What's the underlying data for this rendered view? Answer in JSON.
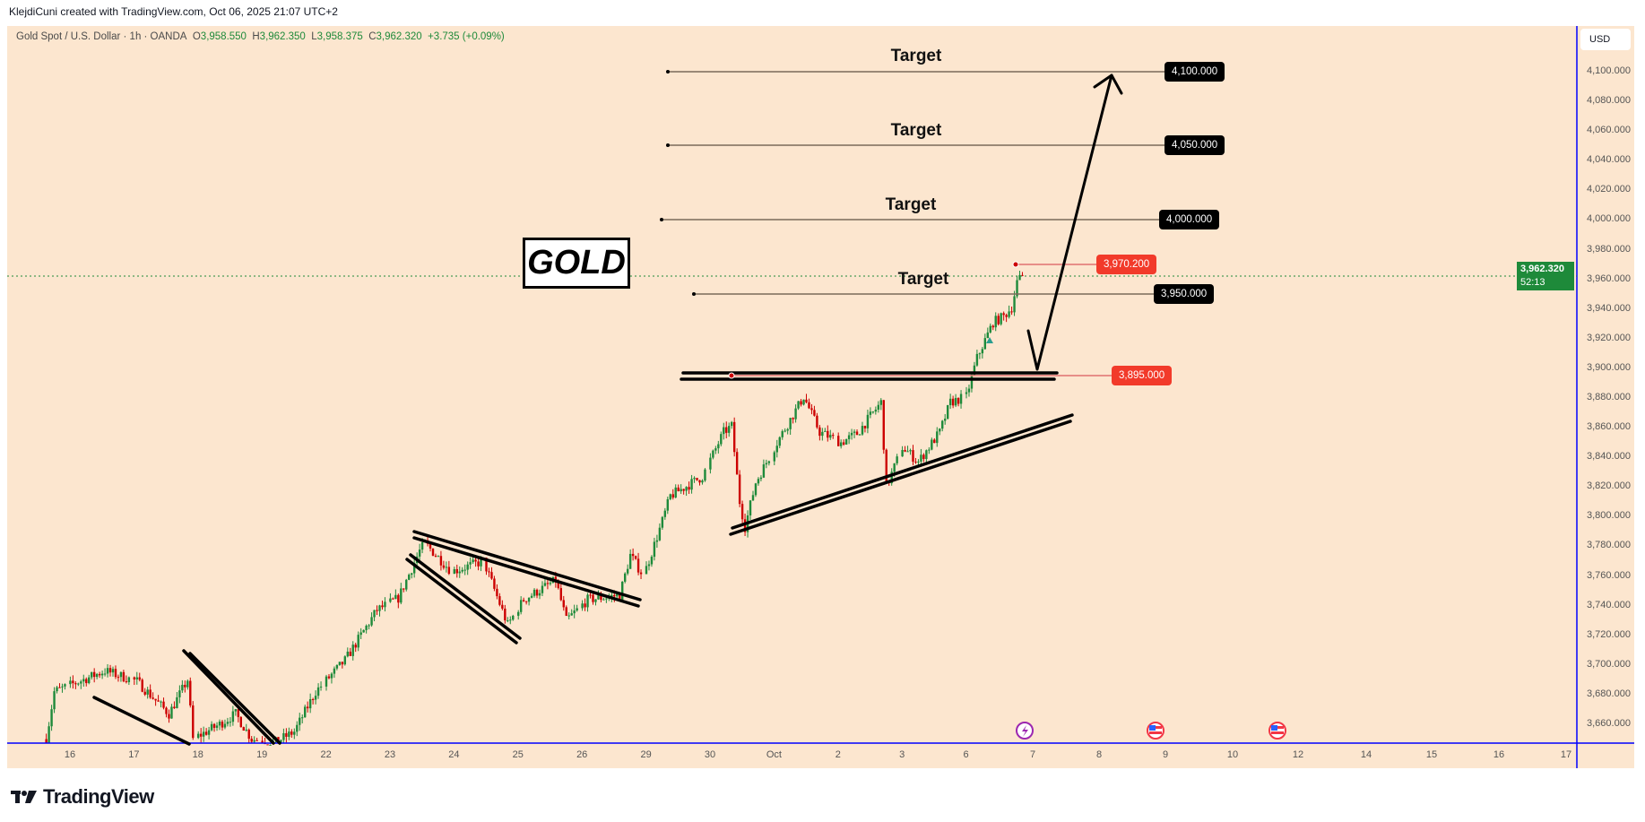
{
  "credit": "KlejdiCuni created with TradingView.com, Oct 06, 2025 21:07 UTC+2",
  "legend": {
    "symbol": "Gold Spot / U.S. Dollar · 1h · OANDA",
    "o_label": "O",
    "o": "3,958.550",
    "h_label": "H",
    "h": "3,962.350",
    "l_label": "L",
    "l": "3,958.375",
    "c_label": "C",
    "c": "3,962.320",
    "change": "+3.735 (+0.09%)"
  },
  "currency": "USD",
  "last_price": {
    "value": "3,962.320",
    "countdown": "52:13"
  },
  "annotations": {
    "title_box": "GOLD",
    "target_word": "Target",
    "targets": [
      "4,100.000",
      "4,050.000",
      "4,000.000",
      "3,950.000"
    ],
    "high_level": "3,970.200",
    "breakout_level": "3,895.000"
  },
  "events": [
    "lightning-event-icon",
    "us-flag-event-icon",
    "us-flag-event-icon"
  ],
  "brand": "TradingView",
  "colors": {
    "background": "#fce6cf",
    "up": "#1e8a3a",
    "down": "#cc0000",
    "axis": "#0000ff",
    "level_red": "#f23a2a"
  },
  "chart_data": {
    "type": "candlestick",
    "interval": "1h",
    "ylim": [
      3647,
      4131
    ],
    "y_ticks": [
      "4,100.000",
      "4,080.000",
      "4,060.000",
      "4,040.000",
      "4,020.000",
      "4,000.000",
      "3,980.000",
      "3,960.000",
      "3,940.000",
      "3,920.000",
      "3,900.000",
      "3,880.000",
      "3,860.000",
      "3,840.000",
      "3,820.000",
      "3,800.000",
      "3,780.000",
      "3,760.000",
      "3,740.000",
      "3,720.000",
      "3,700.000",
      "3,680.000",
      "3,660.000"
    ],
    "x_ticks": [
      "16",
      "17",
      "18",
      "19",
      "22",
      "23",
      "24",
      "25",
      "26",
      "29",
      "30",
      "Oct",
      "2",
      "3",
      "6",
      "7",
      "8",
      "9",
      "10",
      "12",
      "14",
      "15",
      "16",
      "17"
    ],
    "grid": false,
    "price_path": [
      [
        "Sep 15 15:00",
        3650
      ],
      [
        "Sep 15 18:00",
        3682
      ],
      [
        "Sep 16 13:00",
        3696
      ],
      [
        "Sep 17 01:00",
        3689
      ],
      [
        "Sep 17 13:00",
        3667
      ],
      [
        "Sep 17 20:00",
        3690
      ],
      [
        "Sep 17 22:00",
        3650
      ],
      [
        "Sep 18 08:00",
        3660
      ],
      [
        "Sep 18 14:00",
        3667
      ],
      [
        "Sep 18 20:00",
        3650
      ],
      [
        "Sep 19 05:00",
        3648
      ],
      [
        "Sep 19 12:00",
        3655
      ],
      [
        "Sep 19 20:00",
        3682
      ],
      [
        "Sep 22 07:00",
        3703
      ],
      [
        "Sep 22 19:00",
        3737
      ],
      [
        "Sep 23 03:00",
        3745
      ],
      [
        "Sep 23 11:00",
        3777
      ],
      [
        "Sep 23 13:00",
        3782
      ],
      [
        "Sep 23 23:00",
        3763
      ],
      [
        "Sep 24 11:00",
        3770
      ],
      [
        "Sep 24 20:00",
        3727
      ],
      [
        "Sep 25 02:00",
        3744
      ],
      [
        "Sep 25 14:00",
        3757
      ],
      [
        "Sep 25 18:00",
        3730
      ],
      [
        "Sep 26 02:00",
        3744
      ],
      [
        "Sep 26 14:00",
        3747
      ],
      [
        "Sep 26 18:00",
        3774
      ],
      [
        "Sep 26 23:00",
        3760
      ],
      [
        "Sep 29 06:00",
        3797
      ],
      [
        "Sep 29 09:00",
        3814
      ],
      [
        "Sep 29 21:00",
        3827
      ],
      [
        "Sep 30 05:00",
        3857
      ],
      [
        "Sep 30 08:00",
        3861
      ],
      [
        "Sep 30 11:00",
        3810
      ],
      [
        "Sep 30 13:00",
        3793
      ],
      [
        "Sep 30 17:00",
        3823
      ],
      [
        "Oct 1 01:00",
        3850
      ],
      [
        "Oct 1 11:00",
        3881
      ],
      [
        "Oct 1 17:00",
        3857
      ],
      [
        "Oct 2 01:00",
        3850
      ],
      [
        "Oct 2 07:00",
        3856
      ],
      [
        "Oct 2 16:00",
        3877
      ],
      [
        "Oct 2 18:00",
        3820
      ],
      [
        "Oct 3 00:00",
        3847
      ],
      [
        "Oct 3 06:00",
        3837
      ],
      [
        "Oct 3 14:00",
        3857
      ],
      [
        "Oct 3 18:00",
        3877
      ],
      [
        "Oct 6 00:00",
        3881
      ],
      [
        "Oct 6 04:00",
        3907
      ],
      [
        "Oct 6 10:00",
        3931
      ],
      [
        "Oct 6 14:00",
        3935
      ],
      [
        "Oct 6 17:00",
        3941
      ],
      [
        "Oct 6 19:00",
        3958
      ],
      [
        "Oct 6 21:00",
        3962.32
      ]
    ],
    "levels": [
      4100,
      4050,
      4000,
      3970.2,
      3950,
      3895
    ],
    "last": 3962.32
  }
}
